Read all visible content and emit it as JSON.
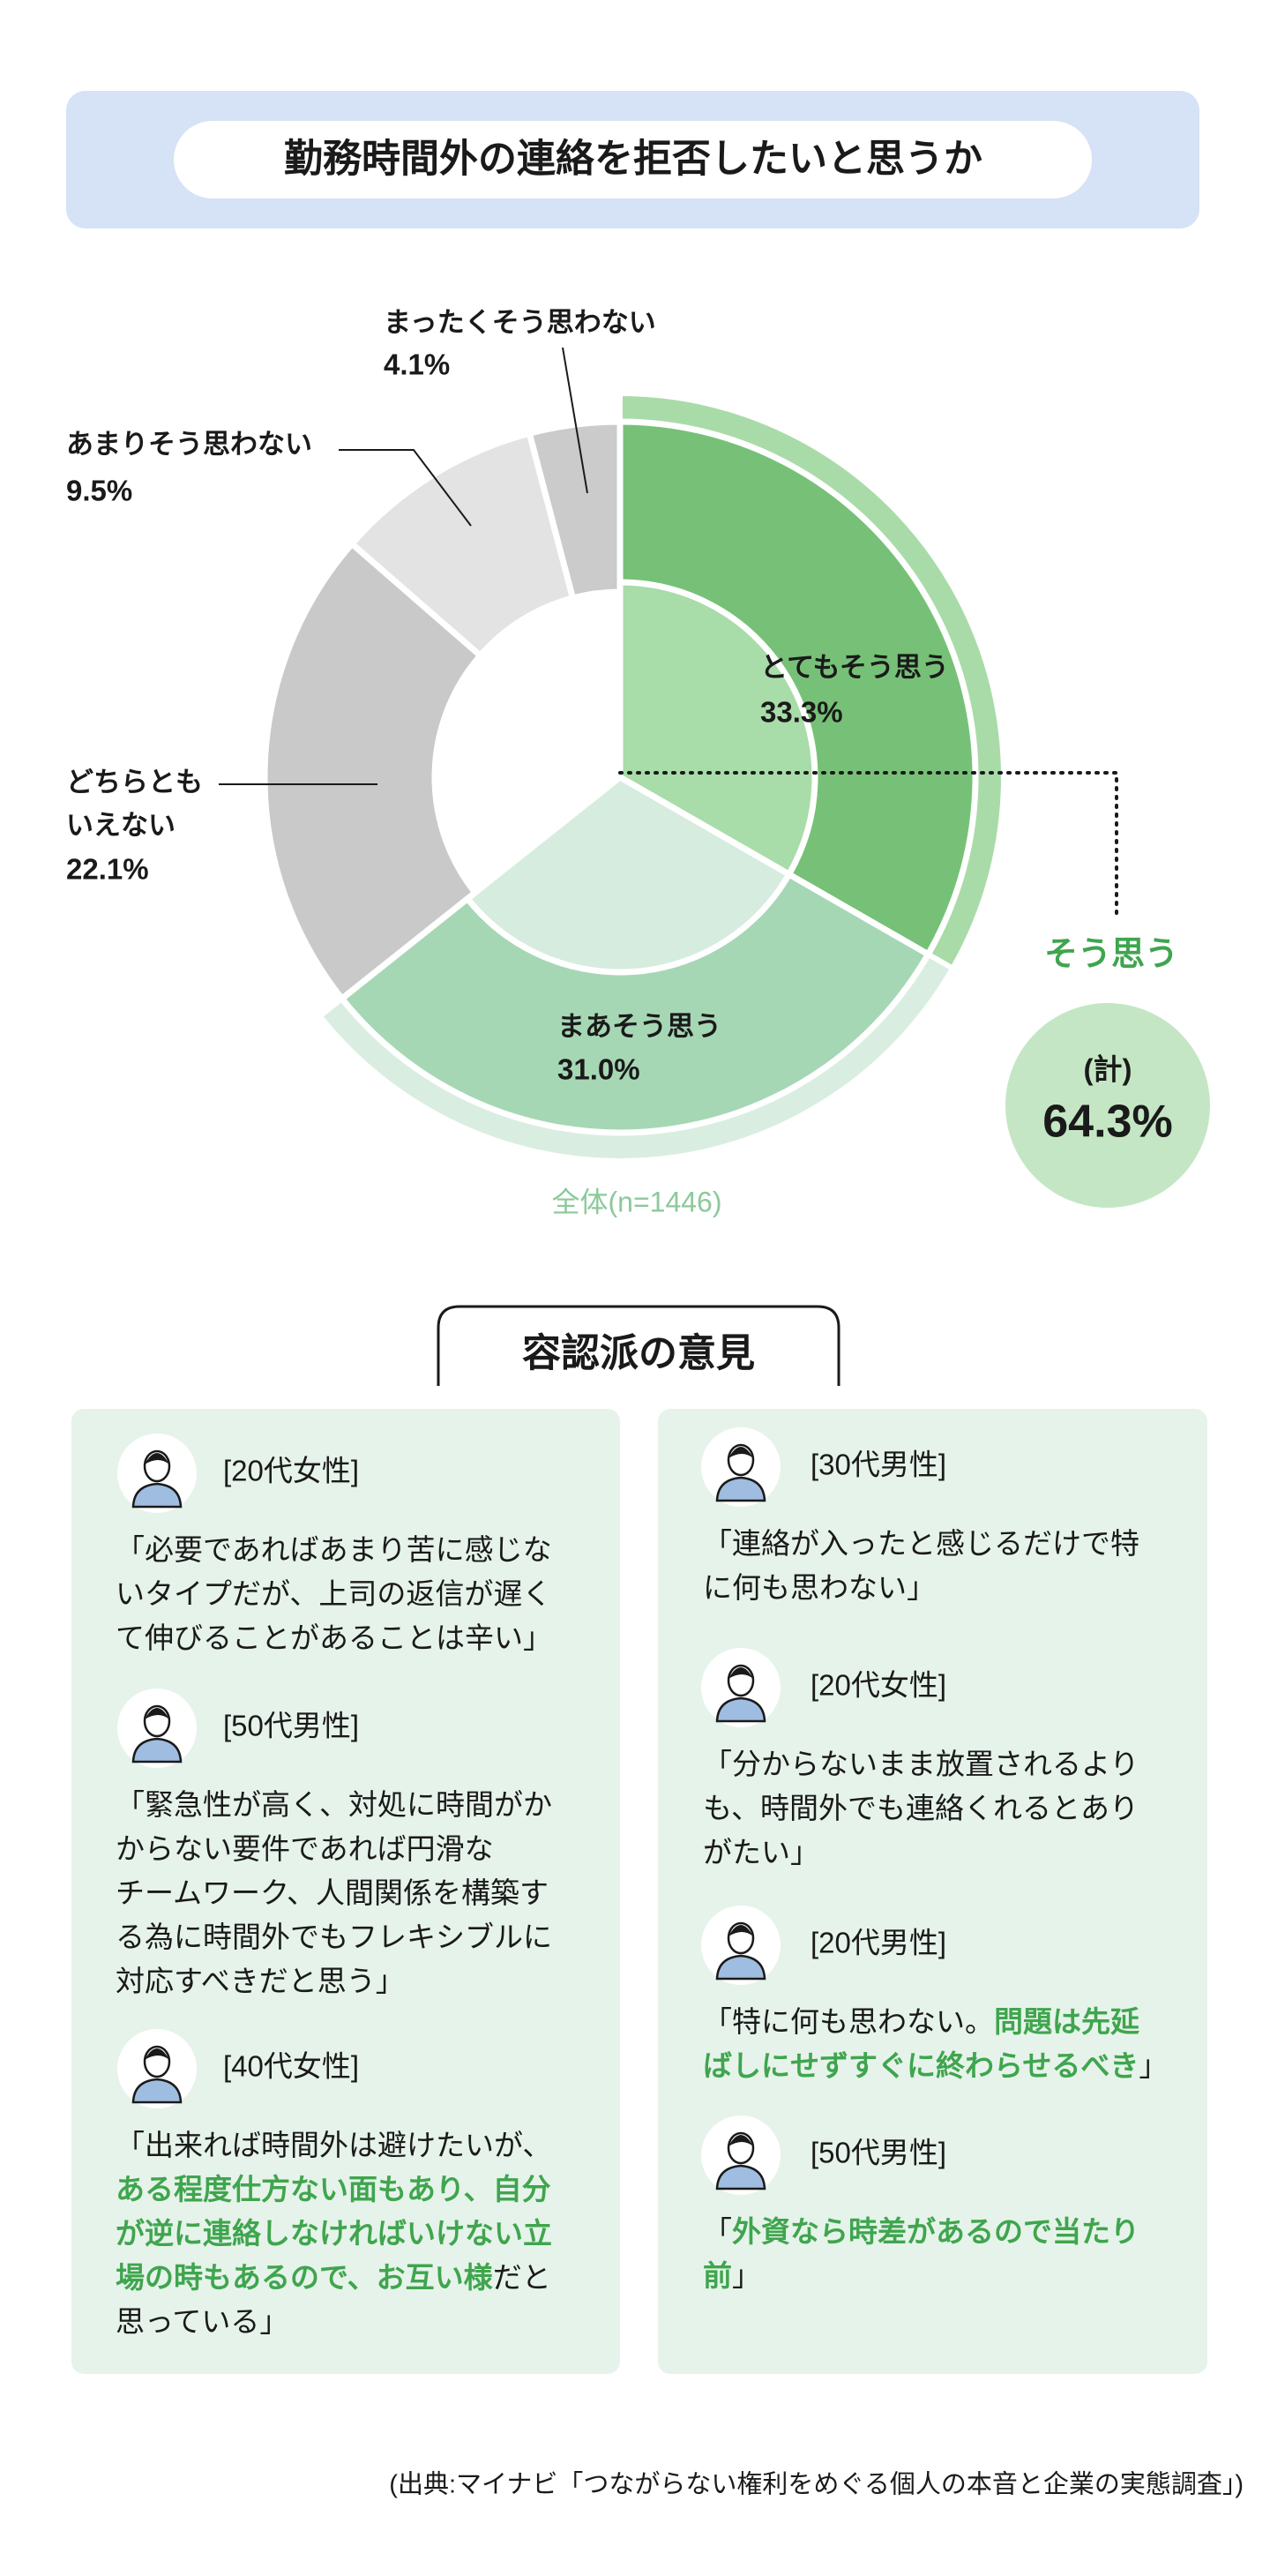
{
  "chart_data": {
    "type": "donut",
    "title": "勤務時間外の連絡を拒否したいと思うか",
    "categories": [
      "とてもそう思う",
      "まあそう思う",
      "どちらとも いえない",
      "あまりそう思わない",
      "まったくそう思わない"
    ],
    "values": [
      33.3,
      31.0,
      22.1,
      9.5,
      4.1
    ],
    "value_labels": [
      "33.3%",
      "31.0%",
      "22.1%",
      "9.5%",
      "4.1%"
    ],
    "colors": [
      "#76c177",
      "#a6d7b5",
      "#c9c9c9",
      "#e3e3e3",
      "#cbcbcb"
    ],
    "inner_colors": [
      "#a8dca8",
      "#d6ecde",
      null,
      null,
      null
    ],
    "ring_colors": [
      "#a9dba9",
      "#d9eee0",
      null,
      null,
      null
    ],
    "total": {
      "label": "そう思う",
      "note": "(計)",
      "value": 64.3,
      "value_label": "64.3%"
    },
    "sample_note": "全体(n=1446)"
  },
  "opinions": {
    "title": "容認派の意見",
    "columns": [
      [
        {
          "label": "[20代女性]",
          "lines": [
            [
              {
                "text": "「必要であればあまり苦に感じな",
                "emphasis": false
              }
            ],
            [
              {
                "text": "いタイプだが、上司の返信が遅く",
                "emphasis": false
              }
            ],
            [
              {
                "text": "て伸びることがあることは辛い」",
                "emphasis": false
              }
            ]
          ]
        },
        {
          "label": "[50代男性]",
          "lines": [
            [
              {
                "text": "「緊急性が高く、対処に時間がか",
                "emphasis": false
              }
            ],
            [
              {
                "text": "からない要件であれば円滑な",
                "emphasis": false
              }
            ],
            [
              {
                "text": "チームワーク、人間関係を構築す",
                "emphasis": false
              }
            ],
            [
              {
                "text": "る為に時間外でもフレキシブルに",
                "emphasis": false
              }
            ],
            [
              {
                "text": "対応すべきだと思う」",
                "emphasis": false
              }
            ]
          ]
        },
        {
          "label": "[40代女性]",
          "lines": [
            [
              {
                "text": "「出来れば時間外は避けたいが、",
                "emphasis": false
              }
            ],
            [
              {
                "text": "ある程度仕方ない面もあり、自分",
                "emphasis": true
              }
            ],
            [
              {
                "text": "が逆に連絡しなければいけない立",
                "emphasis": true
              }
            ],
            [
              {
                "text": "場の時もあるので、お互い様",
                "emphasis": true
              },
              {
                "text": "だと",
                "emphasis": false
              }
            ],
            [
              {
                "text": "思っている」",
                "emphasis": false
              }
            ]
          ]
        }
      ],
      [
        {
          "label": "[30代男性]",
          "lines": [
            [
              {
                "text": "「連絡が入ったと感じるだけで特",
                "emphasis": false
              }
            ],
            [
              {
                "text": "に何も思わない」",
                "emphasis": false
              }
            ]
          ]
        },
        {
          "label": "[20代女性]",
          "lines": [
            [
              {
                "text": "「分からないまま放置されるより",
                "emphasis": false
              }
            ],
            [
              {
                "text": "も、時間外でも連絡くれるとあり",
                "emphasis": false
              }
            ],
            [
              {
                "text": "がたい」",
                "emphasis": false
              }
            ]
          ]
        },
        {
          "label": "[20代男性]",
          "lines": [
            [
              {
                "text": "「特に何も思わない。",
                "emphasis": false
              },
              {
                "text": "問題は先延",
                "emphasis": true
              }
            ],
            [
              {
                "text": "ばしにせずすぐに終わらせるべき",
                "emphasis": true
              },
              {
                "text": "」",
                "emphasis": false
              }
            ]
          ]
        },
        {
          "label": "[50代男性]",
          "lines": [
            [
              {
                "text": "「",
                "emphasis": false
              },
              {
                "text": "外資なら時差があるので当たり",
                "emphasis": true
              }
            ],
            [
              {
                "text": "前",
                "emphasis": true
              },
              {
                "text": "」",
                "emphasis": false
              }
            ]
          ]
        }
      ]
    ]
  },
  "source": "(出典:マイナビ「つながらない権利をめぐる個人の本音と企業の実態調査」)"
}
